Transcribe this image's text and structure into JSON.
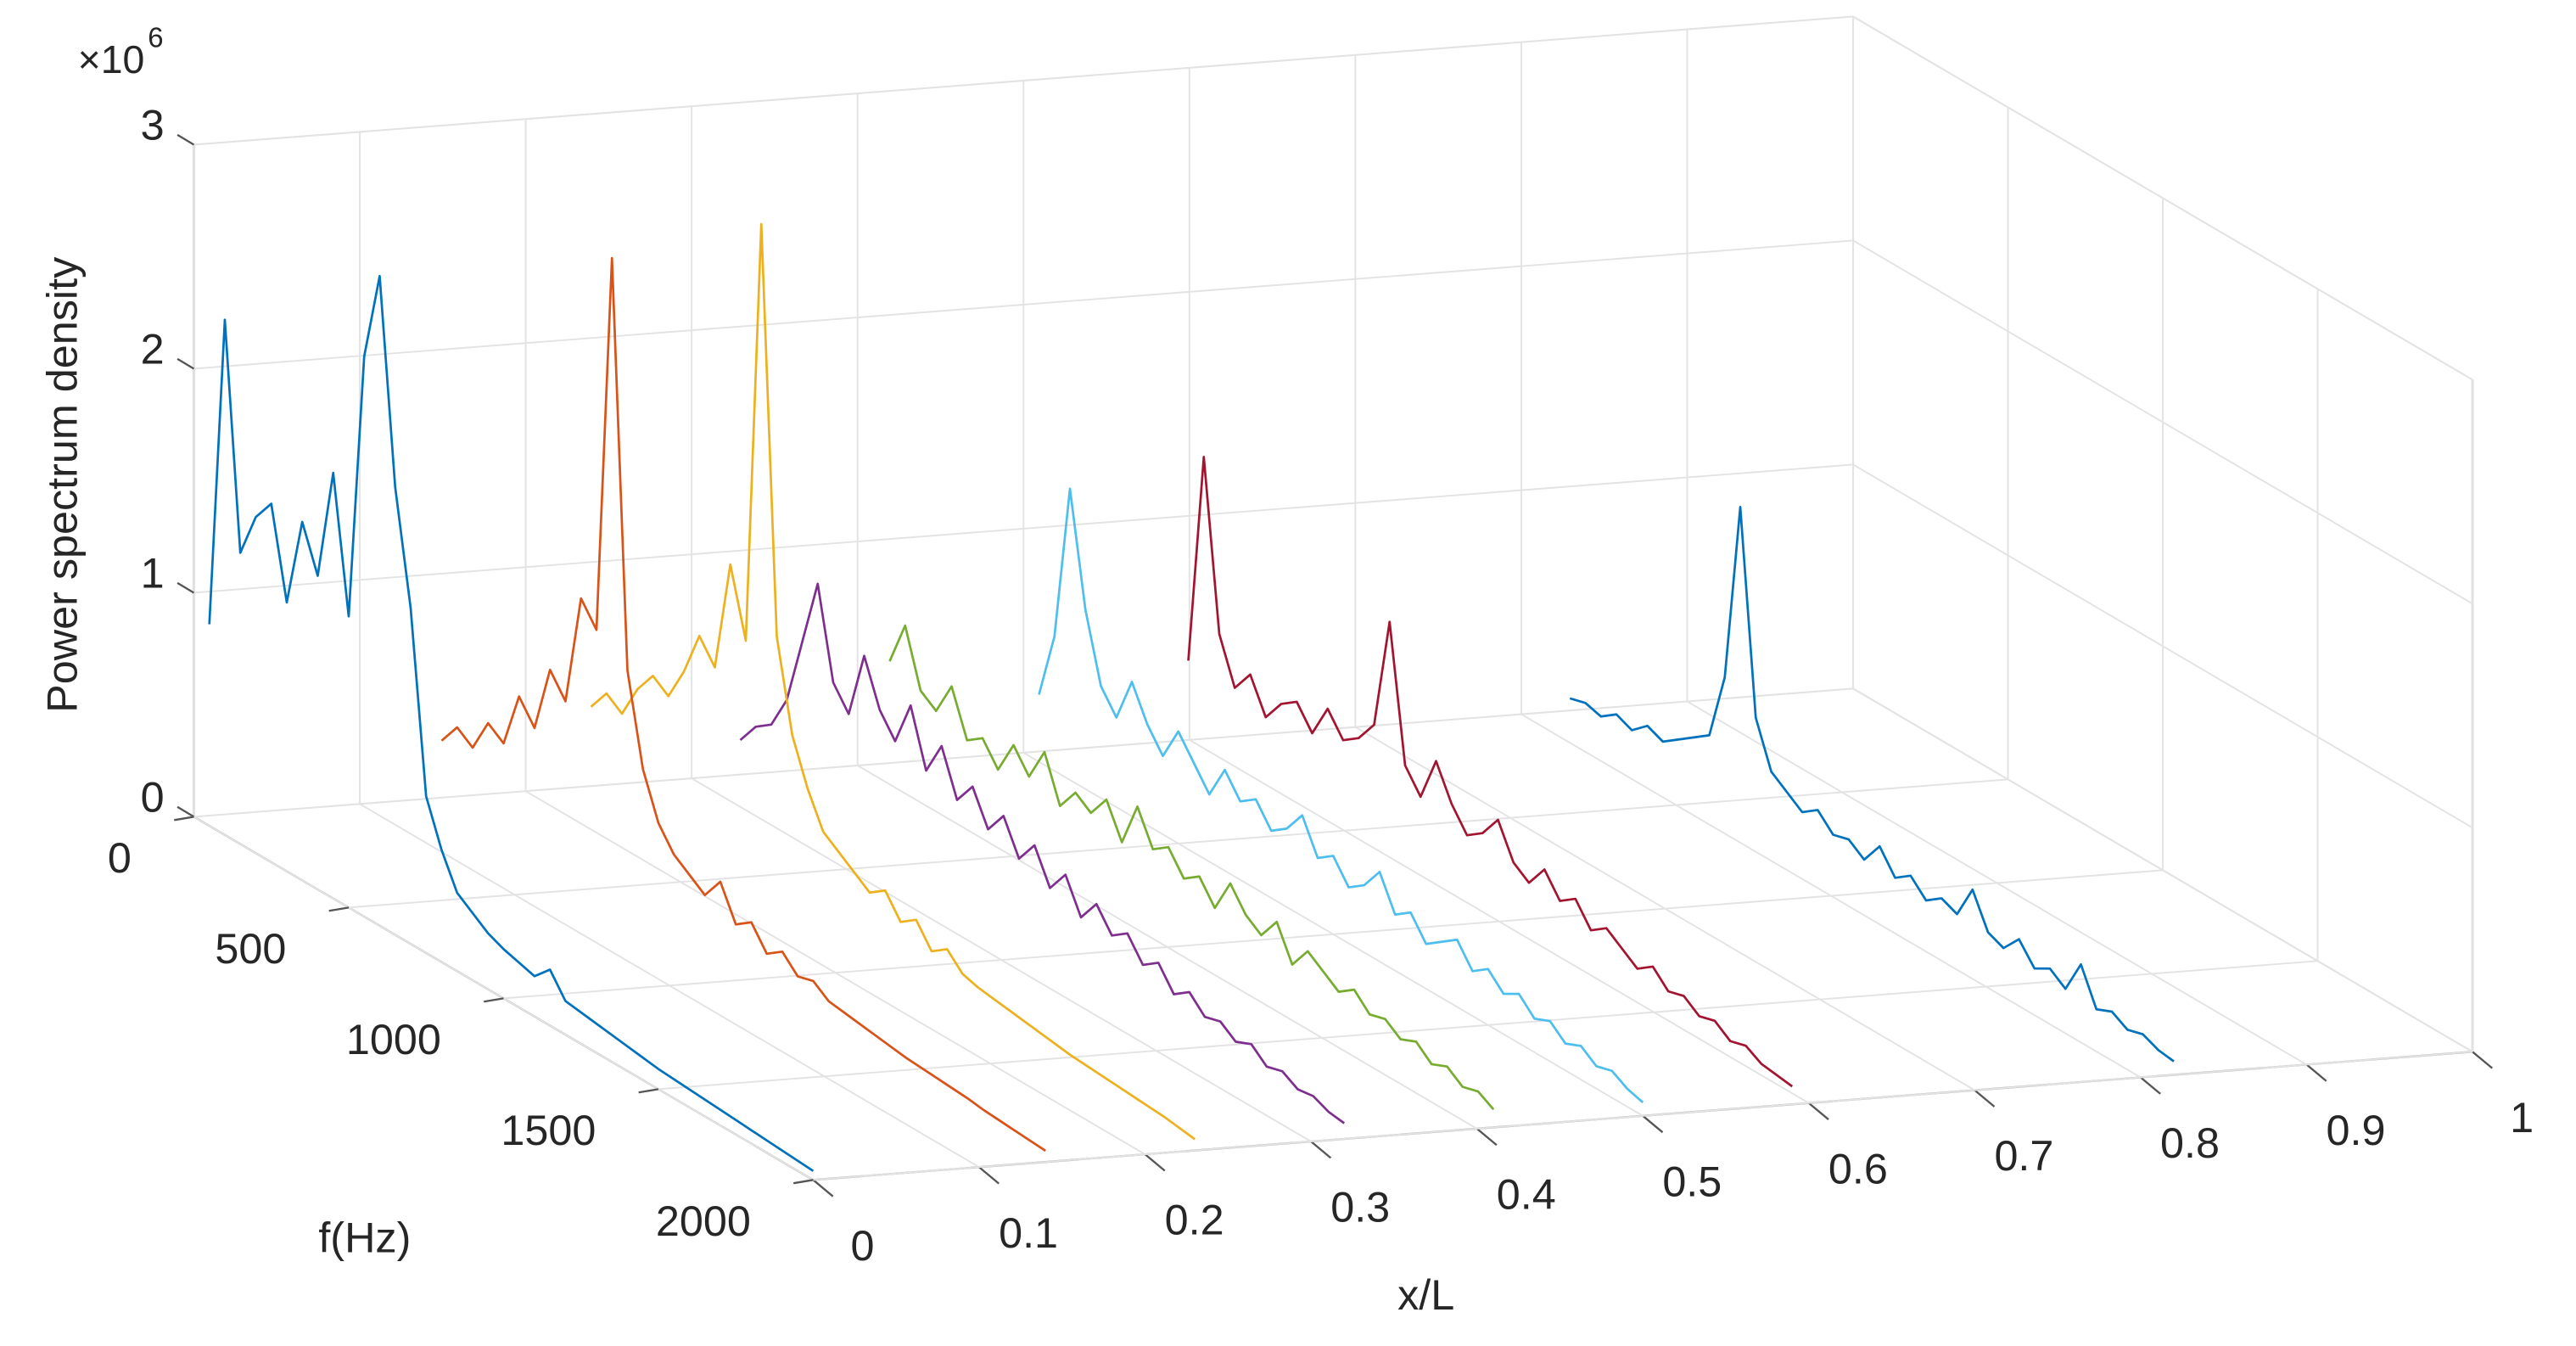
{
  "chart_data": {
    "type": "line3d",
    "xlabel": "x/L",
    "ylabel": "f(Hz)",
    "zlabel": "Power spectrum density",
    "z_multiplier": {
      "base": "×10",
      "exponent": "6"
    },
    "xlim": [
      0,
      1
    ],
    "xticks": [
      0,
      0.1,
      0.2,
      0.3,
      0.4,
      0.5,
      0.6,
      0.7,
      0.8,
      0.9,
      1
    ],
    "ylim": [
      0,
      2000
    ],
    "yticks": [
      0,
      500,
      1000,
      1500,
      2000
    ],
    "zlim": [
      0,
      3000000
    ],
    "zticks": [
      0,
      {
        "value": 1000000,
        "label": "1"
      },
      {
        "value": 2000000,
        "label": "2"
      },
      {
        "value": 3000000,
        "label": "3"
      }
    ],
    "grid": true,
    "x": [
      50,
      100,
      150,
      200,
      250,
      300,
      350,
      400,
      450,
      500,
      550,
      600,
      650,
      700,
      750,
      800,
      850,
      900,
      950,
      1000,
      1050,
      1100,
      1150,
      1200,
      1250,
      1300,
      1350,
      1400,
      1450,
      1500,
      1550,
      1600,
      1650,
      1700,
      1750,
      1800,
      1850,
      1900,
      1950,
      2000
    ],
    "series": [
      {
        "position": 0,
        "color": "#0072bd",
        "values": [
          900000,
          2300000,
          1300000,
          1500000,
          1600000,
          1200000,
          1600000,
          1400000,
          1900000,
          1300000,
          2500000,
          2900000,
          2000000,
          1500000,
          700000,
          500000,
          350000,
          300000,
          250000,
          220000,
          200000,
          180000,
          250000,
          150000,
          140000,
          130000,
          120000,
          110000,
          100000,
          90000,
          85000,
          80000,
          75000,
          70000,
          65000,
          60000,
          55000,
          50000,
          45000,
          40000
        ]
      },
      {
        "position": 0.14,
        "color": "#d95319",
        "values": [
          300000,
          400000,
          350000,
          500000,
          450000,
          700000,
          600000,
          900000,
          800000,
          1300000,
          1200000,
          2900000,
          1100000,
          700000,
          500000,
          400000,
          350000,
          300000,
          400000,
          250000,
          300000,
          200000,
          250000,
          180000,
          200000,
          150000,
          140000,
          130000,
          120000,
          110000,
          100000,
          95000,
          90000,
          85000,
          80000,
          70000,
          65000,
          60000,
          55000,
          50000
        ]
      },
      {
        "position": 0.23,
        "color": "#edb120",
        "values": [
          400000,
          500000,
          450000,
          600000,
          700000,
          650000,
          800000,
          1000000,
          900000,
          1400000,
          1100000,
          3000000,
          1200000,
          800000,
          600000,
          450000,
          400000,
          350000,
          300000,
          350000,
          250000,
          300000,
          200000,
          250000,
          180000,
          160000,
          150000,
          140000,
          130000,
          120000,
          110000,
          100000,
          95000,
          90000,
          85000,
          80000,
          75000,
          70000,
          60000,
          50000
        ]
      },
      {
        "position": 0.32,
        "color": "#7e2f8e",
        "values": [
          200000,
          300000,
          350000,
          500000,
          800000,
          1100000,
          700000,
          600000,
          900000,
          700000,
          600000,
          800000,
          550000,
          700000,
          500000,
          600000,
          450000,
          550000,
          400000,
          500000,
          350000,
          450000,
          300000,
          400000,
          300000,
          350000,
          250000,
          300000,
          200000,
          250000,
          180000,
          200000,
          150000,
          180000,
          120000,
          140000,
          100000,
          110000,
          80000,
          70000
        ]
      },
      {
        "position": 0.41,
        "color": "#77ac30",
        "values": [
          500000,
          700000,
          450000,
          400000,
          550000,
          350000,
          400000,
          300000,
          450000,
          350000,
          500000,
          300000,
          400000,
          350000,
          450000,
          300000,
          500000,
          350000,
          400000,
          300000,
          350000,
          250000,
          400000,
          300000,
          250000,
          350000,
          200000,
          300000,
          250000,
          200000,
          250000,
          180000,
          200000,
          150000,
          180000,
          120000,
          150000,
          100000,
          120000,
          80000
        ]
      },
      {
        "position": 0.5,
        "color": "#4dbeee",
        "values": [
          300000,
          600000,
          1300000,
          800000,
          500000,
          400000,
          600000,
          450000,
          350000,
          500000,
          400000,
          300000,
          450000,
          350000,
          400000,
          300000,
          350000,
          450000,
          300000,
          350000,
          250000,
          300000,
          400000,
          250000,
          300000,
          200000,
          250000,
          300000,
          200000,
          250000,
          180000,
          220000,
          150000,
          180000,
          120000,
          150000,
          100000,
          120000,
          80000,
          60000
        ]
      },
      {
        "position": 0.59,
        "color": "#a2142f",
        "values": [
          400000,
          1350000,
          600000,
          400000,
          500000,
          350000,
          450000,
          500000,
          400000,
          550000,
          450000,
          500000,
          600000,
          1100000,
          500000,
          400000,
          600000,
          450000,
          350000,
          400000,
          500000,
          350000,
          300000,
          400000,
          300000,
          350000,
          250000,
          300000,
          250000,
          200000,
          250000,
          180000,
          200000,
          150000,
          170000,
          120000,
          140000,
          100000,
          90000,
          80000
        ]
      },
      {
        "position": 0.82,
        "color": "#0072bd",
        "values": [
          100000,
          120000,
          100000,
          150000,
          120000,
          180000,
          150000,
          200000,
          250000,
          300000,
          600000,
          1400000,
          500000,
          300000,
          250000,
          200000,
          250000,
          180000,
          200000,
          150000,
          250000,
          150000,
          200000,
          130000,
          180000,
          150000,
          300000,
          150000,
          120000,
          200000,
          110000,
          150000,
          100000,
          250000,
          90000,
          120000,
          80000,
          100000,
          70000,
          60000
        ]
      }
    ]
  }
}
